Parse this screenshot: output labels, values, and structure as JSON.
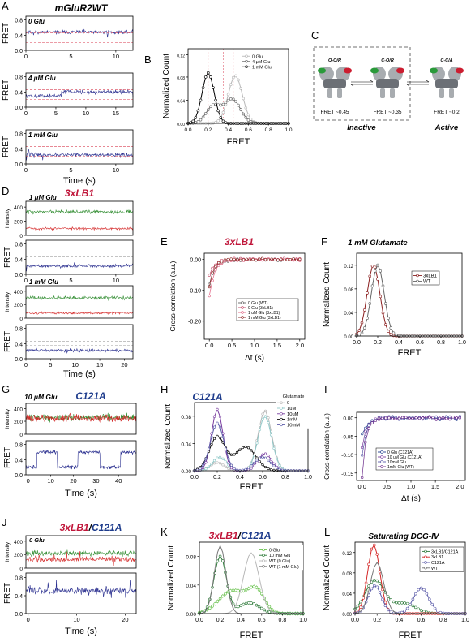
{
  "panel_letters": [
    "A",
    "B",
    "C",
    "D",
    "E",
    "F",
    "G",
    "H",
    "I",
    "J",
    "K",
    "L"
  ],
  "panel_A": {
    "title": "mGluR2WT",
    "traces": [
      {
        "label": "0 Glu",
        "ylabel": "FRET",
        "yticks": [
          "0.0",
          "0.4",
          "0.8"
        ],
        "xticks": [
          "0",
          "5",
          "10"
        ]
      },
      {
        "label": "4 μM Glu",
        "ylabel": "FRET",
        "yticks": [
          "0.0",
          "0.4",
          "0.8"
        ],
        "xticks": [
          "0",
          "5",
          "10",
          "15"
        ]
      },
      {
        "label": "1 mM Glu",
        "ylabel": "FRET",
        "yticks": [
          "0.0",
          "0.4",
          "0.8"
        ],
        "xticks": [
          "0",
          "5",
          "10"
        ]
      }
    ],
    "xlabel": "Time (s)"
  },
  "panel_B": {
    "ylabel": "Normalized Count",
    "xlabel": "FRET",
    "xticks": [
      "0.0",
      "0.2",
      "0.4",
      "0.6",
      "0.8",
      "1.0"
    ],
    "yticks": [
      "0.00",
      "0.04",
      "0.08",
      "0.12"
    ],
    "legend": [
      "0 Glu",
      "4 μM Glu",
      "1 mM Glu"
    ]
  },
  "panel_C": {
    "states": [
      {
        "name": "O-O/R",
        "fret": "FRET ~0.45"
      },
      {
        "name": "C-O/R",
        "fret": "FRET ~0.35"
      },
      {
        "name": "C-C/A",
        "fret": "FRET ~0.2"
      }
    ],
    "inactive": "Inactive",
    "active": "Active"
  },
  "panel_D": {
    "title": "3xLB1",
    "blocks": [
      {
        "label": "1 μM Glu",
        "ylabel_int": "Intensity",
        "ylabel_fret": "FRET",
        "int_yticks": [
          "0",
          "200",
          "400"
        ],
        "fret_yticks": [
          "0.0",
          "0.4",
          "0.8"
        ],
        "xticks": [
          "0",
          "5",
          "10"
        ]
      },
      {
        "label": "1 mM Glu",
        "ylabel_int": "Intensity",
        "ylabel_fret": "FRET",
        "int_yticks": [
          "0",
          "200",
          "400"
        ],
        "fret_yticks": [
          "0.0",
          "0.4",
          "0.8"
        ],
        "xticks": [
          "0",
          "5",
          "10",
          "15",
          "20"
        ]
      }
    ],
    "xlabel": "Time (s)"
  },
  "panel_E": {
    "title": "3xLB1",
    "ylabel": "Cross-correlation (a.u.)",
    "xlabel": "Δt (s)",
    "xticks": [
      "0.0",
      "0.5",
      "1.0",
      "1.5",
      "2.0"
    ],
    "yticks": [
      "0.00",
      "-0.10",
      "-0.20"
    ],
    "legend": [
      "0 Glu (WT)",
      "0 Glu (3xLB1)",
      "1 uM Glu (3xLB1)",
      "1 mM Glu (3xLB1)"
    ]
  },
  "panel_F": {
    "title": "1 mM Glutamate",
    "ylabel": "Normalized Count",
    "xlabel": "FRET",
    "xticks": [
      "0.0",
      "0.2",
      "0.4",
      "0.6",
      "0.8",
      "1.0"
    ],
    "yticks": [
      "0.00",
      "0.04",
      "0.08",
      "0.12"
    ],
    "legend": [
      "3xLB1",
      "WT"
    ]
  },
  "panel_G": {
    "label": "10 μM Glu",
    "title": "C121A",
    "ylabel_int": "Intensity",
    "ylabel_fret": "FRET",
    "int_yticks": [
      "0",
      "200",
      "400"
    ],
    "fret_yticks": [
      "0.0",
      "0.4",
      "0.8"
    ],
    "xticks": [
      "0",
      "10",
      "20",
      "30",
      "40"
    ],
    "xlabel": "Time (s)"
  },
  "panel_H": {
    "title": "C121A",
    "ylabel": "Normalized Count",
    "xlabel": "FRET",
    "xticks": [
      "0.0",
      "0.2",
      "0.4",
      "0.6",
      "0.8",
      "1.0"
    ],
    "yticks": [
      "0.00",
      "0.04",
      "0.08"
    ],
    "legend_title": "Glutamate",
    "legend": [
      "0",
      "1uM",
      "10uM",
      "1mM",
      "10mM"
    ]
  },
  "panel_I": {
    "ylabel": "Cross-correlation (a.u.)",
    "xlabel": "Δt (s)",
    "xticks": [
      "0.0",
      "0.5",
      "1.0",
      "1.5",
      "2.0"
    ],
    "yticks": [
      "0.00",
      "-0.05",
      "-0.10",
      "-0.15"
    ],
    "legend": [
      "0 Glu (C121A)",
      "10 uM Glu (C121A)",
      "10mM Glu",
      "1mM Glu (WT)"
    ]
  },
  "panel_J": {
    "label": "0 Glu",
    "title_a": "3xLB1",
    "title_sep": "/",
    "title_b": "C121A",
    "ylabel_int": "Intensity",
    "ylabel_fret": "FRET",
    "int_yticks": [
      "0",
      "200",
      "400"
    ],
    "fret_yticks": [
      "0.0",
      "0.4",
      "0.8"
    ],
    "xticks": [
      "0",
      "10",
      "20"
    ],
    "xlabel": "Time (s)"
  },
  "panel_K": {
    "title_a": "3xLB1",
    "title_sep": "/",
    "title_b": "C121A",
    "ylabel": "Normalized Count",
    "xlabel": "FRET",
    "xticks": [
      "0.0",
      "0.2",
      "0.4",
      "0.6",
      "0.8",
      "1.0"
    ],
    "yticks": [
      "0.00",
      "0.04",
      "0.08"
    ],
    "legend": [
      "0 Glu",
      "10 mM Glu",
      "WT (0 Glu)",
      "WT (1 mM Glu)"
    ]
  },
  "panel_L": {
    "title": "Saturating DCG-IV",
    "ylabel": "Normalized Count",
    "xlabel": "FRET",
    "xticks": [
      "0.0",
      "0.2",
      "0.4",
      "0.6",
      "0.8",
      "1.0"
    ],
    "yticks": [
      "0.00",
      "0.04",
      "0.08",
      "0.12"
    ],
    "legend": [
      "3xLB1/C121A",
      "3xLB1",
      "C121A",
      "WT"
    ]
  },
  "colors": {
    "trace_blue": "#2a2f8f",
    "donor_green": "#2e8b2e",
    "acceptor_red": "#d42828",
    "ref_red": "#e06070",
    "title_red": "#c0163a",
    "title_blue": "#1e3c8c",
    "light_gray": "#b8b8b8",
    "dark_gray": "#666666",
    "black": "#000000",
    "purple": "#7a3fa0",
    "teal": "#8fc8c8",
    "green_light": "#66c04a",
    "green_dark": "#2e7a3a",
    "brown": "#8b2020",
    "panel_c_gray": "#a8acb0",
    "panel_c_dark": "#6c7076",
    "panel_c_green": "#2a9a3a",
    "panel_c_red": "#cc1d30"
  }
}
